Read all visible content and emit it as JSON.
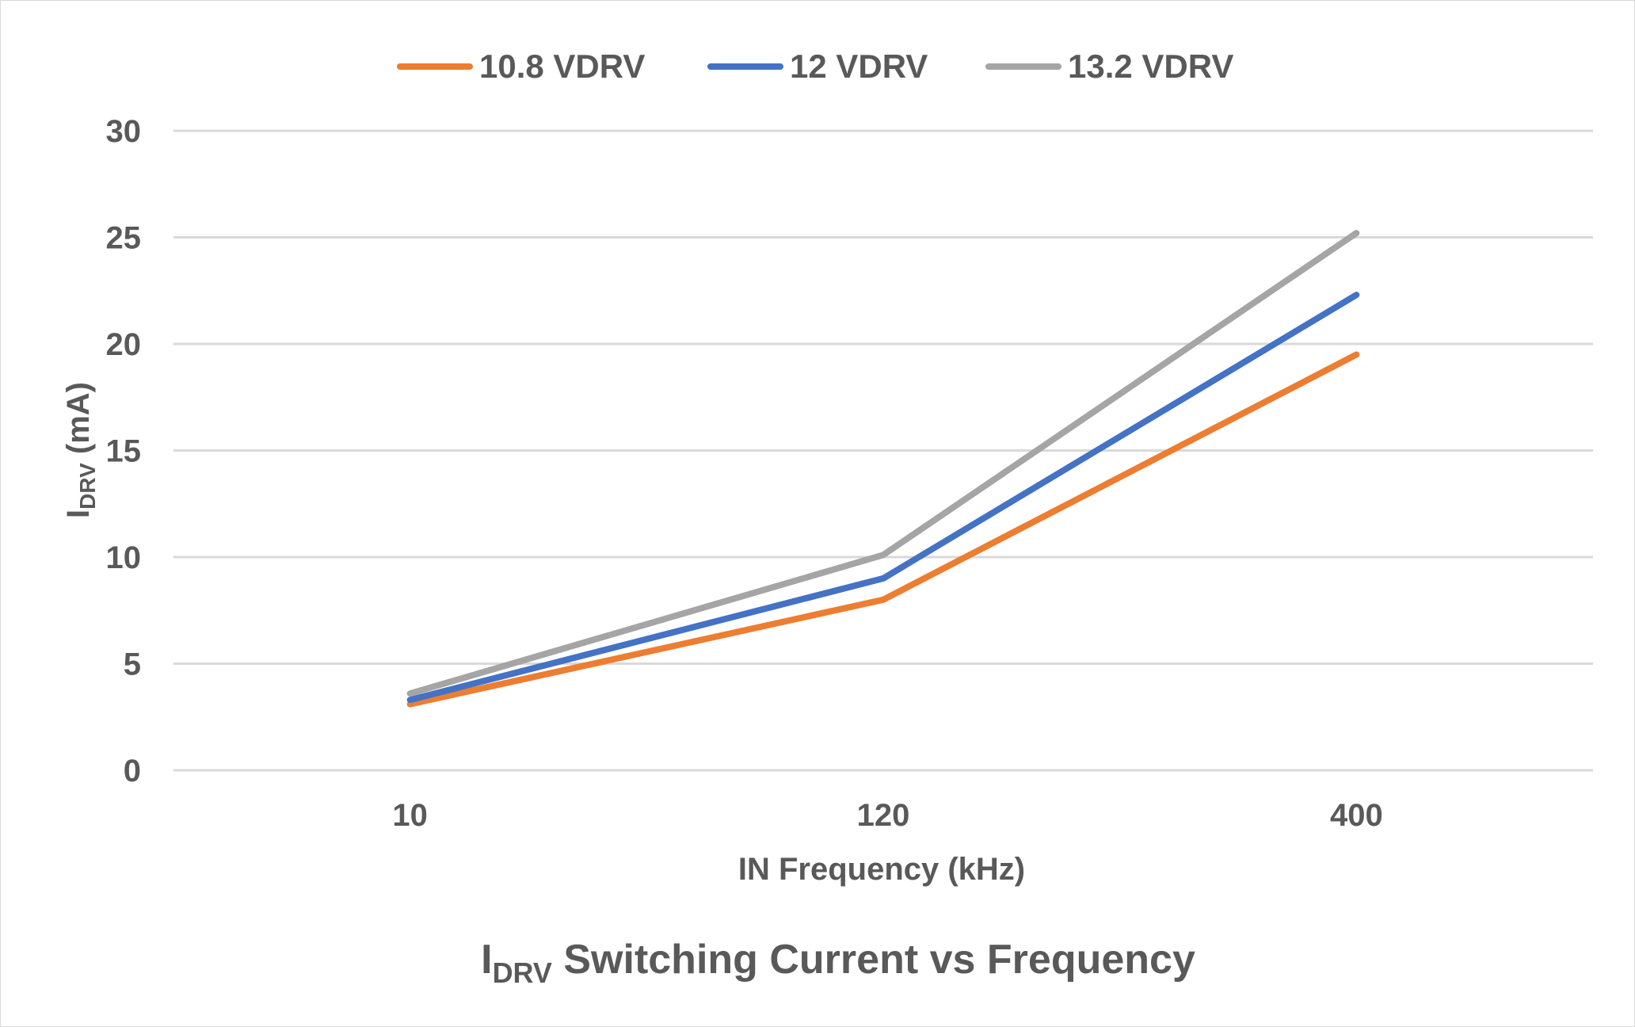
{
  "chart_data": {
    "type": "line",
    "title": "I",
    "title_sub": "DRV",
    "title_rest": " Switching Current vs Frequency",
    "xlabel": "IN Frequency (kHz)",
    "ylabel": "I",
    "ylabel_sub": "DRV",
    "ylabel_rest": " (mA)",
    "categories": [
      "10",
      "120",
      "400"
    ],
    "ylim": [
      0,
      30
    ],
    "yticks": [
      0,
      5,
      10,
      15,
      20,
      25,
      30
    ],
    "grid": true,
    "legend_position": "top",
    "series": [
      {
        "name": "10.8 VDRV",
        "color": "#ED7D31",
        "values": [
          3.1,
          8.0,
          19.5
        ]
      },
      {
        "name": "12 VDRV",
        "color": "#4472C4",
        "values": [
          3.3,
          9.0,
          22.3
        ]
      },
      {
        "name": "13.2 VDRV",
        "color": "#A5A5A5",
        "values": [
          3.6,
          10.1,
          25.2
        ]
      }
    ]
  }
}
